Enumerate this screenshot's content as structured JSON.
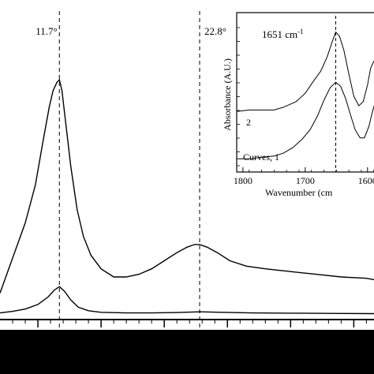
{
  "chart_data": [
    {
      "type": "line",
      "title": "",
      "xlabel": "",
      "ylabel": "",
      "annotations": [
        {
          "label": "11.7°",
          "x": 11.7
        },
        {
          "label": "22.8°",
          "x": 22.8
        }
      ],
      "xlim": [
        7,
        36.6
      ],
      "ylim": [
        0,
        1
      ],
      "grid": false,
      "series": [
        {
          "x": [
            7,
            8,
            9,
            9.8,
            10.4,
            10.9,
            11.2,
            11.5,
            11.7,
            11.9,
            12.2,
            12.6,
            13.1,
            13.6,
            14.2,
            15,
            16,
            17,
            18,
            19,
            20,
            21,
            21.8,
            22.4,
            22.8,
            23.4,
            24.2,
            25.2,
            26.5,
            28,
            30,
            32,
            34,
            36,
            36.6
          ],
          "values": [
            0.21,
            0.34,
            0.47,
            0.61,
            0.77,
            0.9,
            0.96,
            0.99,
            1.0,
            0.96,
            0.84,
            0.68,
            0.52,
            0.42,
            0.35,
            0.3,
            0.27,
            0.27,
            0.28,
            0.3,
            0.33,
            0.36,
            0.38,
            0.39,
            0.39,
            0.38,
            0.36,
            0.33,
            0.31,
            0.3,
            0.29,
            0.28,
            0.27,
            0.265,
            0.26
          ]
        },
        {
          "x": [
            7,
            8,
            9,
            10,
            10.8,
            11.3,
            11.7,
            12.1,
            12.6,
            13.2,
            14,
            15,
            17,
            19,
            21,
            22.8,
            24.5,
            27,
            30,
            33,
            36.6
          ],
          "values": [
            0.015,
            0.022,
            0.032,
            0.052,
            0.085,
            0.115,
            0.13,
            0.11,
            0.072,
            0.04,
            0.025,
            0.018,
            0.015,
            0.015,
            0.017,
            0.02,
            0.018,
            0.015,
            0.014,
            0.013,
            0.012
          ]
        }
      ]
    },
    {
      "type": "line",
      "xlabel": "Wavenumber (cm",
      "ylabel": "Absorbance (A.U.)",
      "xticks": [
        "1800",
        "1700",
        "1600"
      ],
      "xlim": [
        1810,
        1582
      ],
      "ylim": [
        0,
        1
      ],
      "annotations": [
        {
          "label": "1651 cm",
          "x": 1651
        },
        {
          "label": "-1",
          "note": "superscript"
        },
        {
          "label": "2",
          "note": "upper curve"
        },
        {
          "label": "Curves, 1",
          "note": "lower curve"
        }
      ],
      "grid": false,
      "series": [
        {
          "x": [
            1810,
            1790,
            1770,
            1750,
            1735,
            1715,
            1700,
            1688,
            1675,
            1665,
            1656,
            1651,
            1645,
            1638,
            1630,
            1622,
            1614,
            1607,
            1600,
            1595,
            1590,
            1582
          ],
          "values": [
            0.39,
            0.4,
            0.4,
            0.4,
            0.42,
            0.46,
            0.52,
            0.6,
            0.68,
            0.78,
            0.9,
            0.96,
            0.93,
            0.83,
            0.66,
            0.5,
            0.43,
            0.46,
            0.58,
            0.7,
            0.75,
            0.77
          ]
        },
        {
          "x": [
            1810,
            1790,
            1770,
            1750,
            1735,
            1720,
            1705,
            1692,
            1680,
            1670,
            1660,
            1651,
            1643,
            1635,
            1627,
            1620,
            1612,
            1605,
            1598,
            1592,
            1586,
            1582
          ],
          "values": [
            0.05,
            0.05,
            0.06,
            0.07,
            0.09,
            0.13,
            0.19,
            0.26,
            0.36,
            0.47,
            0.56,
            0.6,
            0.57,
            0.48,
            0.36,
            0.26,
            0.2,
            0.2,
            0.28,
            0.39,
            0.48,
            0.52
          ]
        }
      ]
    }
  ],
  "footer": {
    "color": "#000000"
  }
}
